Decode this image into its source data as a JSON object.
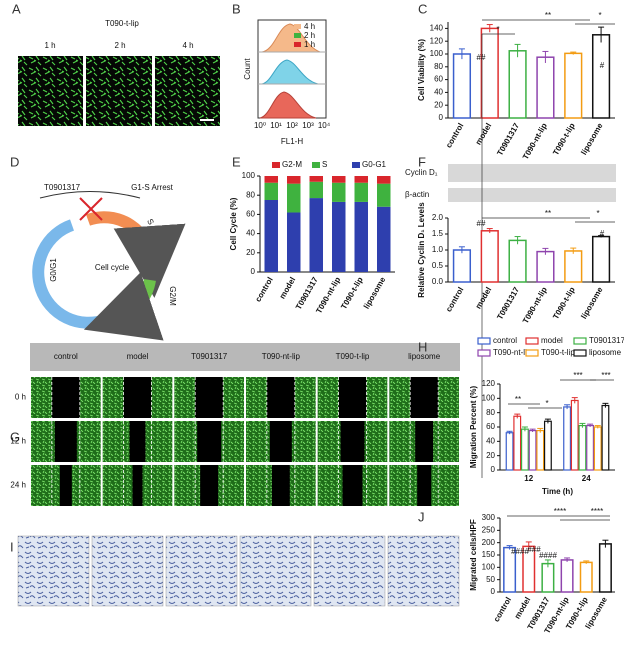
{
  "panel_labels": [
    "A",
    "B",
    "C",
    "D",
    "E",
    "F",
    "G",
    "H",
    "I",
    "J"
  ],
  "panel_a": {
    "title": "T090-t-lip",
    "times": [
      "1 h",
      "2 h",
      "4 h"
    ]
  },
  "panel_b": {
    "legend": [
      "4 h",
      "2 h",
      "1 h"
    ],
    "colors": [
      "#f5b98a",
      "#7fd3e8",
      "#e8675a"
    ],
    "ylabel": "Count",
    "xlabel": "FL1-H",
    "xticks": [
      "10⁰",
      "10¹",
      "10²",
      "10³",
      "10⁴"
    ]
  },
  "panel_d": {
    "drug": "T0901317",
    "arrest": "G1-S Arrest",
    "center": "Cell cycle",
    "phases": [
      "S",
      "G2/M",
      "G0/G1"
    ]
  },
  "panel_f_blot": [
    "Cyclin D₁",
    "β-actin"
  ],
  "panel_g": {
    "groups": [
      "control",
      "model",
      "T0901317",
      "T090-nt-lip",
      "T090-t-lip",
      "liposome"
    ],
    "times": [
      "0 h",
      "12 h",
      "24 h"
    ]
  },
  "chart_data": [
    {
      "type": "bar",
      "ylabel": "Cell Viability (%)",
      "categories": [
        "control",
        "model",
        "T0901317",
        "T090-nt-lip",
        "T090-t-lip",
        "liposome"
      ],
      "values": [
        100,
        140,
        105,
        95,
        101,
        130
      ],
      "errors": [
        8,
        6,
        10,
        9,
        2,
        12
      ],
      "colors": [
        "#3a5fcd",
        "#e03030",
        "#3cb043",
        "#8e44ad",
        "#f39c12",
        "#111111"
      ],
      "ylim": [
        0,
        150
      ],
      "yticks": [
        0,
        20,
        40,
        60,
        80,
        100,
        120,
        140
      ],
      "annotations": [
        "**",
        "*",
        "*",
        "##",
        "#"
      ]
    },
    {
      "type": "stacked_bar",
      "ylabel": "Cell Cycle (%)",
      "categories": [
        "control",
        "model",
        "T0901317",
        "T090-nt-lip",
        "T090-t-lip",
        "liposome"
      ],
      "series": [
        {
          "name": "G0-G1",
          "color": "#2e3fae",
          "values": [
            75,
            62,
            77,
            73,
            73,
            68
          ]
        },
        {
          "name": "S",
          "color": "#3fb23f",
          "values": [
            18,
            30,
            17,
            20,
            20,
            24
          ]
        },
        {
          "name": "G2-M",
          "color": "#d9262c",
          "values": [
            7,
            8,
            6,
            7,
            7,
            8
          ]
        }
      ],
      "ylim": [
        0,
        100
      ],
      "yticks": [
        0,
        20,
        40,
        60,
        80,
        100
      ]
    },
    {
      "type": "bar",
      "ylabel": "Relative Cyclin D₁ Levels",
      "categories": [
        "control",
        "model",
        "T0901317",
        "T090-nt-lip",
        "T090-t-lip",
        "liposome"
      ],
      "values": [
        1.0,
        1.6,
        1.3,
        0.95,
        0.97,
        1.42
      ],
      "errors": [
        0.1,
        0.07,
        0.12,
        0.1,
        0.09,
        0.03
      ],
      "colors": [
        "#3a5fcd",
        "#e03030",
        "#3cb043",
        "#8e44ad",
        "#f39c12",
        "#111111"
      ],
      "ylim": [
        0,
        2
      ],
      "yticks": [
        {
          "value": 0,
          "label": "0.0"
        },
        {
          "value": 0.5,
          "label": "0.5"
        },
        {
          "value": 1,
          "label": "1.0"
        },
        {
          "value": 1.5,
          "label": "1.5"
        },
        {
          "value": 2,
          "label": "2.0"
        }
      ],
      "annotations": [
        "**",
        "*",
        "##",
        "#"
      ]
    },
    {
      "type": "grouped_bar",
      "ylabel": "Migration Percent (%)",
      "xlabel": "Time (h)",
      "categories": [
        "12",
        "24"
      ],
      "series": [
        {
          "name": "control",
          "color": "#3a5fcd",
          "values": [
            52,
            88
          ],
          "errors": [
            2,
            3
          ]
        },
        {
          "name": "model",
          "color": "#e03030",
          "values": [
            75,
            97
          ],
          "errors": [
            3,
            4
          ]
        },
        {
          "name": "T0901317",
          "color": "#3cb043",
          "values": [
            57,
            62
          ],
          "errors": [
            3,
            3
          ]
        },
        {
          "name": "T090-nt-lip",
          "color": "#8e44ad",
          "values": [
            55,
            62
          ],
          "errors": [
            2,
            2
          ]
        },
        {
          "name": "T090-t-lip",
          "color": "#f39c12",
          "values": [
            55,
            60
          ],
          "errors": [
            3,
            2
          ]
        },
        {
          "name": "liposome",
          "color": "#111111",
          "values": [
            68,
            90
          ],
          "errors": [
            3,
            3
          ]
        }
      ],
      "ylim": [
        0,
        120
      ],
      "yticks": [
        0,
        20,
        40,
        60,
        80,
        100,
        120
      ],
      "annotations": [
        "**",
        "*",
        "***",
        "***"
      ]
    },
    {
      "type": "bar",
      "ylabel": "Migrated cells/HPF",
      "categories": [
        "control",
        "model",
        "T0901317",
        "T090-nt-lip",
        "T090-t-lip",
        "liposome"
      ],
      "values": [
        180,
        185,
        115,
        130,
        120,
        195
      ],
      "errors": [
        8,
        18,
        15,
        8,
        6,
        15
      ],
      "colors": [
        "#3a5fcd",
        "#e03030",
        "#3cb043",
        "#8e44ad",
        "#f39c12",
        "#111111"
      ],
      "ylim": [
        0,
        300
      ],
      "yticks": [
        0,
        50,
        100,
        150,
        200,
        250,
        300
      ],
      "annotations": [
        "****",
        "****",
        "####",
        "###",
        "####"
      ]
    }
  ]
}
